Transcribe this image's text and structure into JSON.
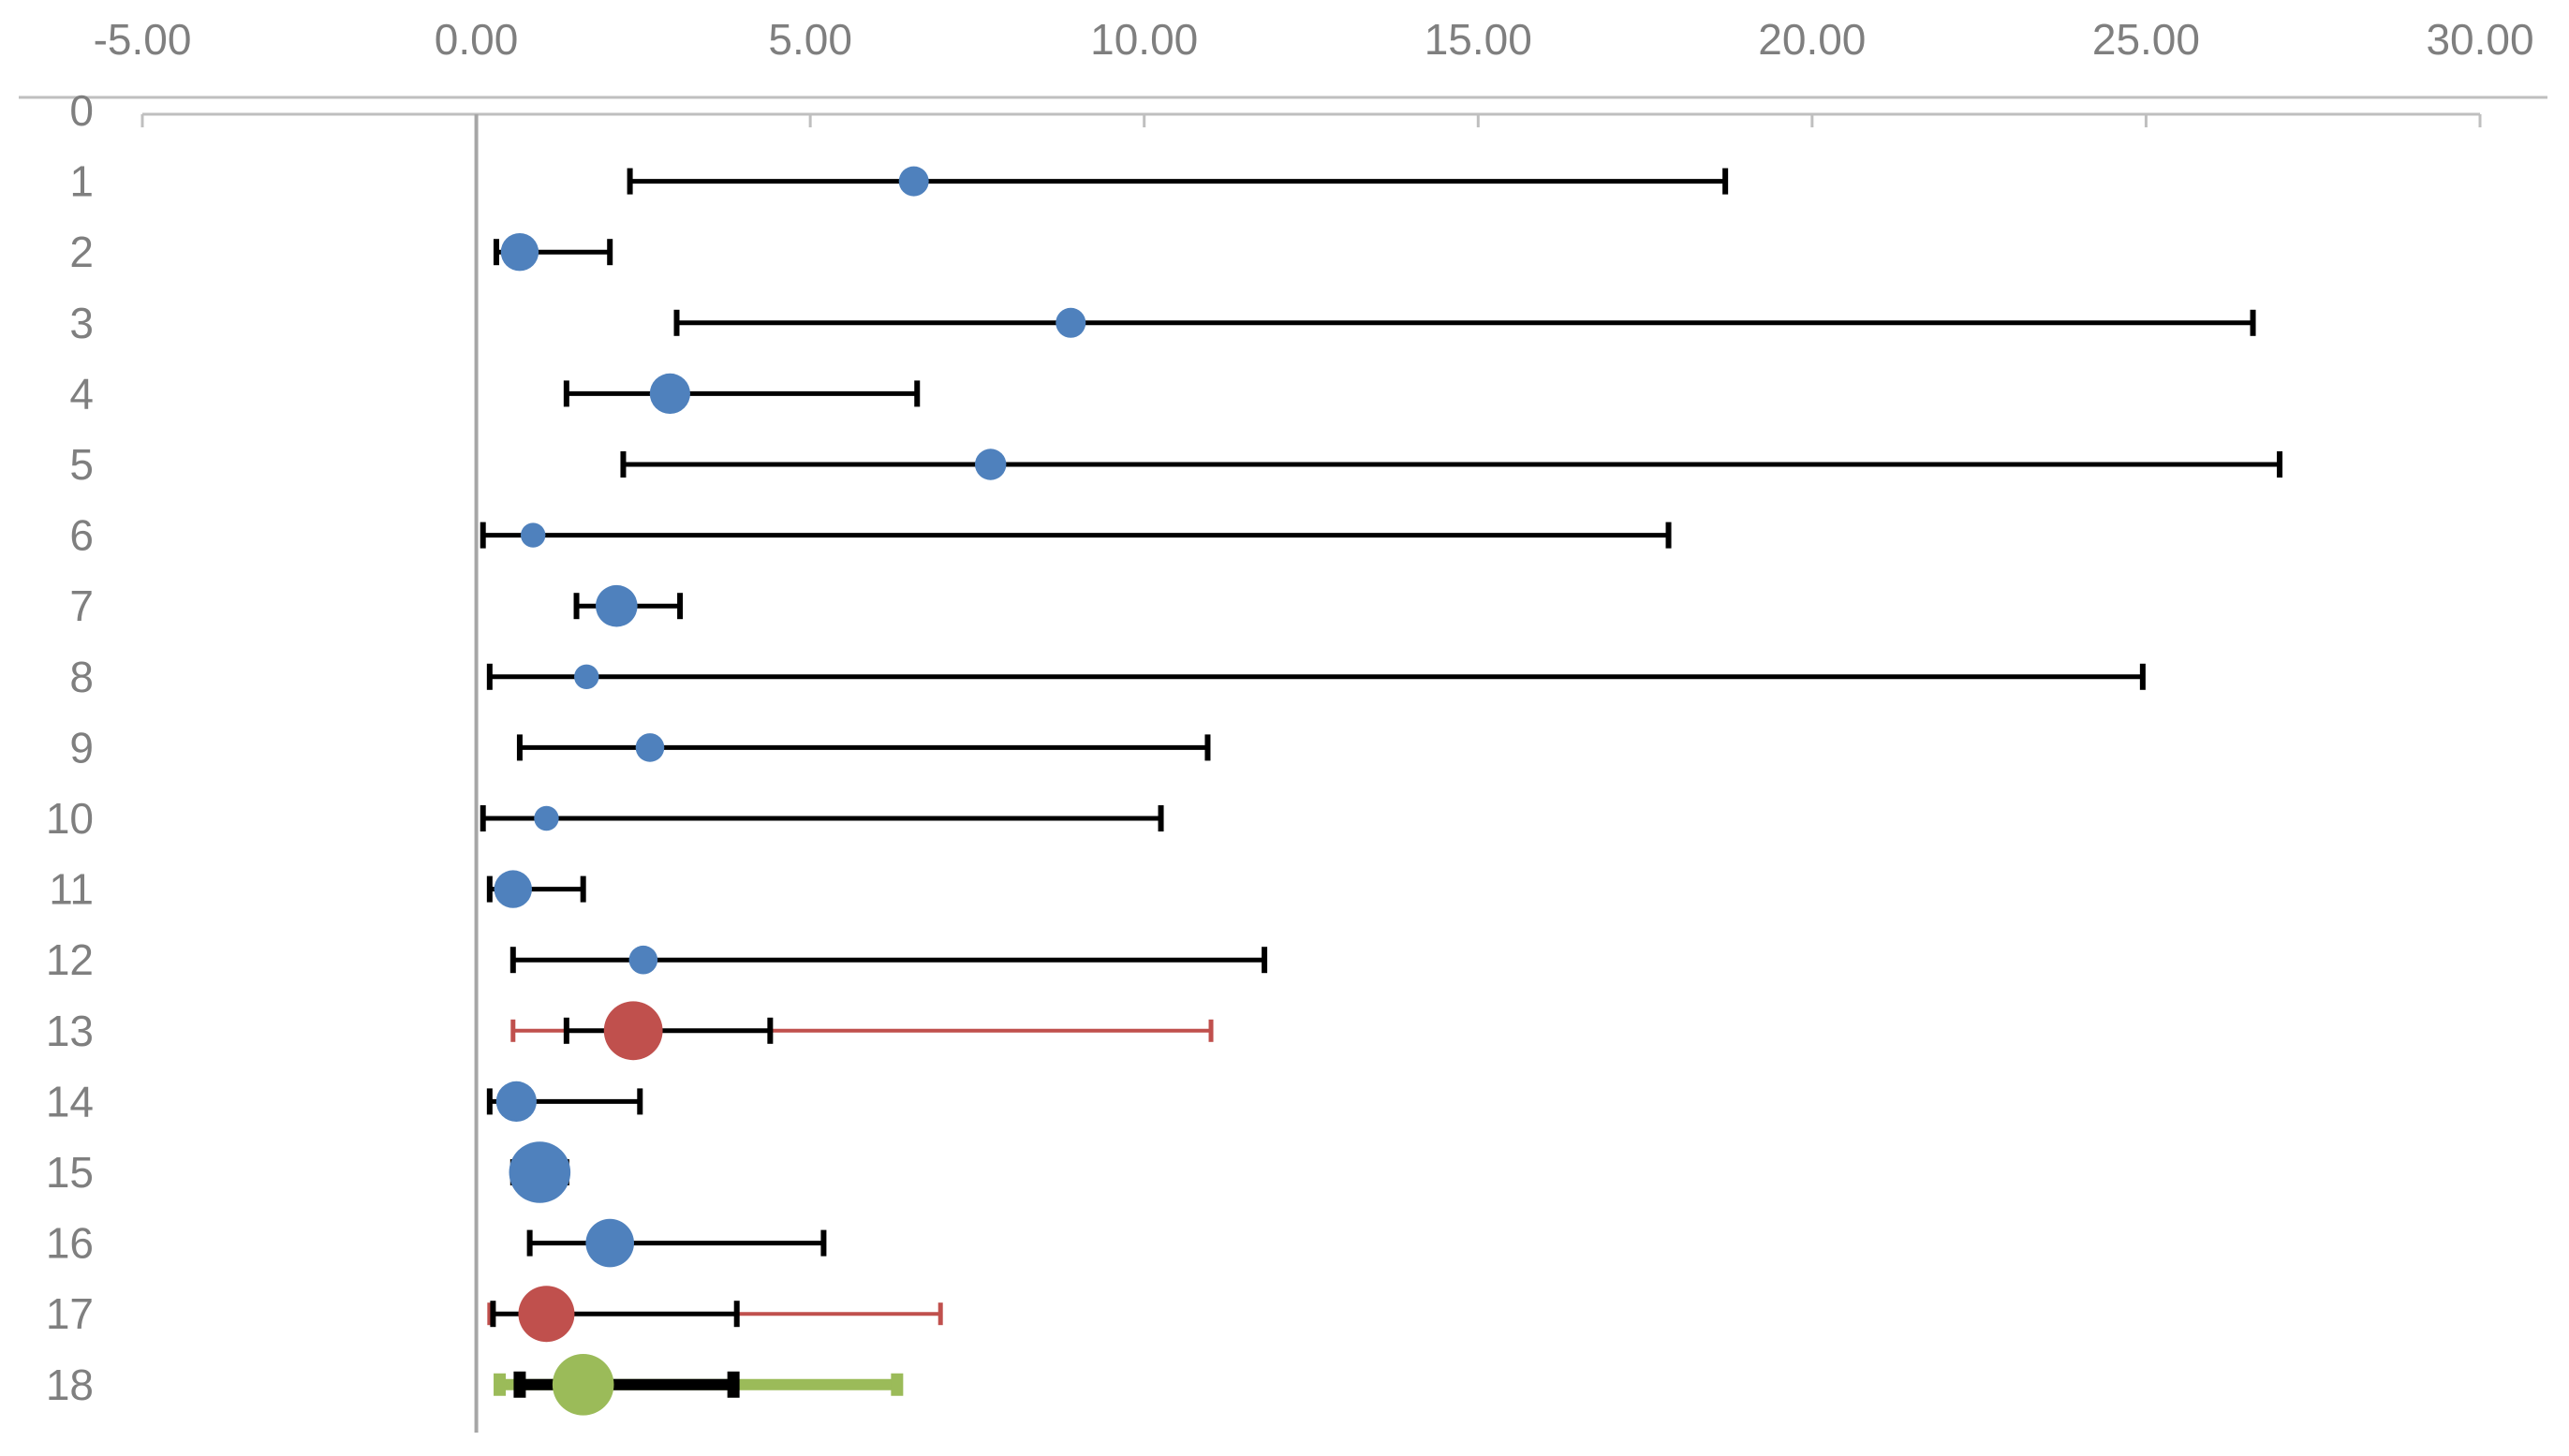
{
  "chart_data": {
    "type": "forest",
    "title": "",
    "xlabel": "",
    "ylabel": "",
    "xlim": [
      -5,
      30
    ],
    "x_ticks": [
      "-5.00",
      "0.00",
      "5.00",
      "10.00",
      "15.00",
      "20.00",
      "25.00",
      "30.00"
    ],
    "x_tick_values": [
      -5,
      0,
      5,
      10,
      15,
      20,
      25,
      30
    ],
    "y_labels": [
      "0",
      "1",
      "2",
      "3",
      "4",
      "5",
      "6",
      "7",
      "8",
      "9",
      "10",
      "11",
      "12",
      "13",
      "14",
      "15",
      "16",
      "17",
      "18"
    ],
    "reference_line_x": 0,
    "colors": {
      "blue": "#4f81bd",
      "red": "#c0504d",
      "green": "#9bbb59",
      "black": "#000000",
      "axis": "#bfbfbf",
      "zero_line": "#a6a6a6"
    },
    "points": [
      {
        "row": 1,
        "estimate": 6.55,
        "lower": 2.3,
        "upper": 18.7,
        "color": "blue",
        "weight": 1
      },
      {
        "row": 2,
        "estimate": 0.65,
        "lower": 0.3,
        "upper": 2.0,
        "color": "blue",
        "weight": 1.6
      },
      {
        "row": 3,
        "estimate": 8.9,
        "lower": 3.0,
        "upper": 26.6,
        "color": "blue",
        "weight": 1
      },
      {
        "row": 4,
        "estimate": 2.9,
        "lower": 1.35,
        "upper": 6.6,
        "color": "blue",
        "weight": 1.8
      },
      {
        "row": 5,
        "estimate": 7.7,
        "lower": 2.2,
        "upper": 27.0,
        "color": "blue",
        "weight": 1.1
      },
      {
        "row": 6,
        "estimate": 0.85,
        "lower": 0.1,
        "upper": 17.85,
        "color": "blue",
        "weight": 0.6
      },
      {
        "row": 7,
        "estimate": 2.1,
        "lower": 1.5,
        "upper": 3.05,
        "color": "blue",
        "weight": 1.9
      },
      {
        "row": 8,
        "estimate": 1.65,
        "lower": 0.2,
        "upper": 24.95,
        "color": "blue",
        "weight": 0.6
      },
      {
        "row": 9,
        "estimate": 2.6,
        "lower": 0.65,
        "upper": 10.95,
        "color": "blue",
        "weight": 0.9
      },
      {
        "row": 10,
        "estimate": 1.05,
        "lower": 0.1,
        "upper": 10.25,
        "color": "blue",
        "weight": 0.6
      },
      {
        "row": 11,
        "estimate": 0.55,
        "lower": 0.2,
        "upper": 1.6,
        "color": "blue",
        "weight": 1.6
      },
      {
        "row": 12,
        "estimate": 2.5,
        "lower": 0.55,
        "upper": 11.8,
        "color": "blue",
        "weight": 0.9
      },
      {
        "row": 13,
        "estimate": 2.35,
        "lower": 1.35,
        "upper": 4.4,
        "color": "red",
        "weight": 3.2,
        "outer_lower": 0.55,
        "outer_upper": 11.0
      },
      {
        "row": 14,
        "estimate": 0.6,
        "lower": 0.2,
        "upper": 2.45,
        "color": "blue",
        "weight": 1.8
      },
      {
        "row": 15,
        "estimate": 0.95,
        "lower": 0.55,
        "upper": 1.35,
        "color": "blue",
        "weight": 3.4
      },
      {
        "row": 16,
        "estimate": 2.0,
        "lower": 0.8,
        "upper": 5.2,
        "color": "blue",
        "weight": 2.4
      },
      {
        "row": 17,
        "estimate": 1.05,
        "lower": 0.25,
        "upper": 3.9,
        "color": "red",
        "weight": 3.0,
        "outer_lower": 0.2,
        "outer_upper": 6.95
      },
      {
        "row": 18,
        "estimate": 1.6,
        "lower": 0.65,
        "upper": 3.85,
        "color": "green",
        "weight": 3.4,
        "outer_lower": 0.35,
        "outer_upper": 6.3,
        "bold": true
      }
    ]
  }
}
